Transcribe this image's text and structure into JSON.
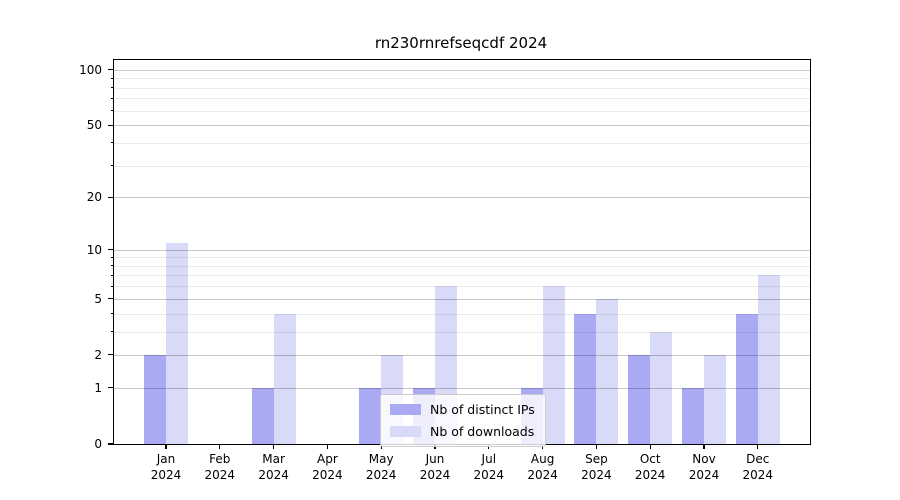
{
  "chart_data": {
    "type": "bar",
    "title": "rn230rnrefseqcdf 2024",
    "xlabel": "",
    "ylabel": "",
    "year": "2024",
    "categories": [
      "Jan",
      "Feb",
      "Mar",
      "Apr",
      "May",
      "Jun",
      "Jul",
      "Aug",
      "Sep",
      "Oct",
      "Nov",
      "Dec"
    ],
    "series": [
      {
        "name": "Nb of distinct IPs",
        "color": "#a9a9f4",
        "values": [
          2,
          0,
          1,
          0,
          1,
          1,
          0,
          1,
          4,
          2,
          1,
          4
        ]
      },
      {
        "name": "Nb of downloads",
        "color": "#d9d9f8",
        "values": [
          11,
          0,
          4,
          0,
          2,
          6,
          0,
          6,
          5,
          3,
          2,
          7
        ]
      }
    ],
    "yscale": "log1p",
    "ymax": 113,
    "yticks_major": [
      0,
      1,
      2,
      5,
      10,
      20,
      50,
      100
    ],
    "yticks_minor": [
      3,
      4,
      6,
      7,
      8,
      9,
      30,
      40,
      60,
      70,
      80,
      90
    ],
    "grid": "on",
    "legend_position": "lower center",
    "colors": {
      "axis": "#000000",
      "grid_major": "rgba(0,0,0,0.22)",
      "grid_minor": "rgba(0,0,0,0.08)",
      "legend_border": "#cccccc",
      "legend_background": "rgba(255,255,255,0.8)"
    }
  }
}
